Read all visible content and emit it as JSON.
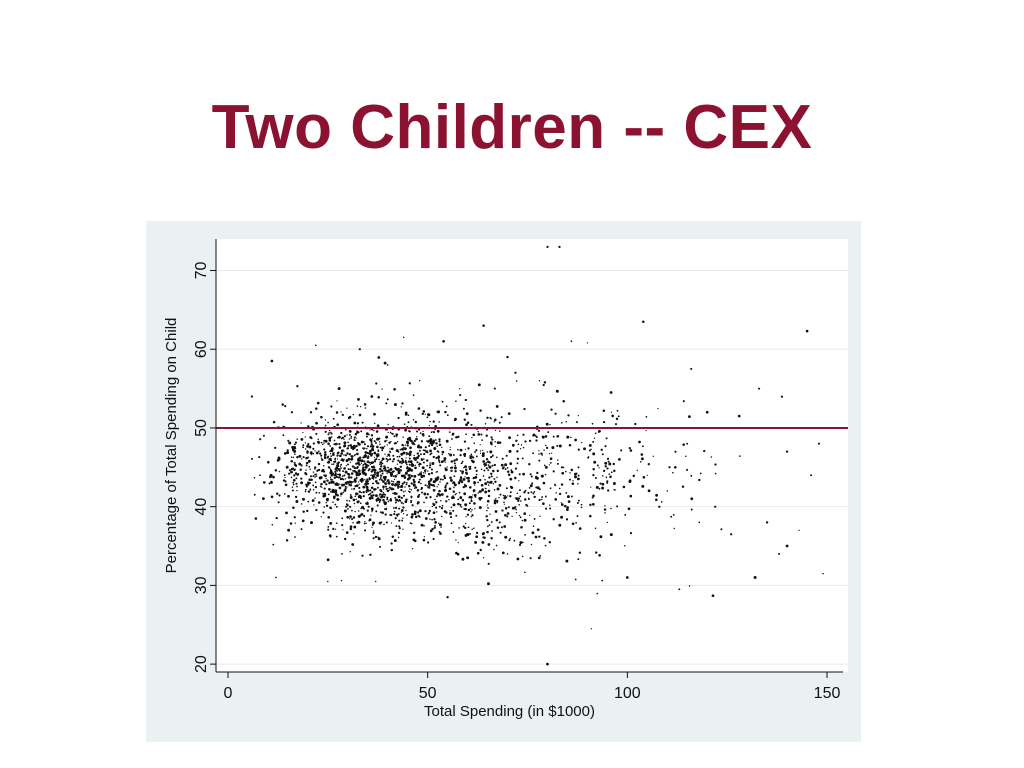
{
  "slide": {
    "title": "Two Children -- CEX"
  },
  "chart_data": {
    "type": "scatter",
    "xlabel": "Total Spending (in $1000)",
    "ylabel": "Percentage of Total Spending on Child",
    "xlim": [
      -3,
      154
    ],
    "ylim": [
      19,
      74
    ],
    "xticks": [
      0,
      50,
      100,
      150
    ],
    "yticks": [
      20,
      30,
      40,
      50,
      60,
      70
    ],
    "grid": true,
    "reference_line": {
      "orientation": "horizontal",
      "y": 50,
      "color": "#8b1230"
    },
    "colors": {
      "points": "#111111",
      "plot_background": "#ffffff",
      "outer_background": "#eaf1f3"
    },
    "points_description_note": "",
    "points": [
      [
        80,
        73
      ],
      [
        83,
        73
      ],
      [
        80,
        20
      ],
      [
        91,
        24.5
      ],
      [
        55,
        28.5
      ],
      [
        113,
        29.5
      ],
      [
        25,
        30.5
      ],
      [
        37,
        30.5
      ],
      [
        100,
        31
      ],
      [
        132,
        31
      ],
      [
        149,
        31.5
      ],
      [
        12,
        31
      ],
      [
        44,
        61.5
      ],
      [
        54,
        61
      ],
      [
        64,
        63
      ],
      [
        104,
        63.5
      ],
      [
        145,
        62.3
      ],
      [
        22,
        60.5
      ],
      [
        11,
        58.5
      ],
      [
        86,
        61
      ],
      [
        90,
        60.8
      ],
      [
        116,
        57.5
      ],
      [
        70,
        59
      ],
      [
        78,
        56
      ],
      [
        120,
        52
      ],
      [
        128,
        51.5
      ],
      [
        133,
        55
      ],
      [
        140,
        47
      ],
      [
        148,
        48
      ],
      [
        146,
        44
      ],
      [
        143,
        37
      ],
      [
        140,
        35
      ],
      [
        138,
        34
      ],
      [
        135,
        38
      ],
      [
        126,
        36.5
      ],
      [
        122,
        40
      ],
      [
        118,
        38
      ],
      [
        110,
        42
      ],
      [
        108,
        40
      ],
      [
        105,
        44
      ],
      [
        112,
        45
      ],
      [
        115,
        48
      ],
      [
        98,
        46
      ],
      [
        95,
        38
      ],
      [
        96,
        52
      ],
      [
        102,
        50.5
      ],
      [
        7,
        38.5
      ],
      [
        8,
        44
      ],
      [
        9,
        49
      ],
      [
        6,
        54
      ],
      [
        13,
        46
      ],
      [
        16,
        52
      ],
      [
        60,
        33.5
      ],
      [
        64,
        33.5
      ],
      [
        70,
        34
      ],
      [
        76,
        35.2
      ],
      [
        66,
        36
      ],
      [
        52,
        38
      ],
      [
        48,
        56
      ],
      [
        72,
        57
      ],
      [
        58,
        55
      ],
      [
        40,
        58
      ],
      [
        33,
        60
      ],
      [
        36,
        54
      ]
    ],
    "cloud": {
      "count": 2100,
      "clusters": [
        {
          "x_mean": 34,
          "x_sd": 11,
          "y_mean": 44.5,
          "y_sd": 3.6,
          "weight": 0.55
        },
        {
          "x_mean": 58,
          "x_sd": 14,
          "y_mean": 44,
          "y_sd": 4.6,
          "weight": 0.33
        },
        {
          "x_mean": 88,
          "x_sd": 14,
          "y_mean": 43.5,
          "y_sd": 4.8,
          "weight": 0.12
        }
      ]
    }
  }
}
